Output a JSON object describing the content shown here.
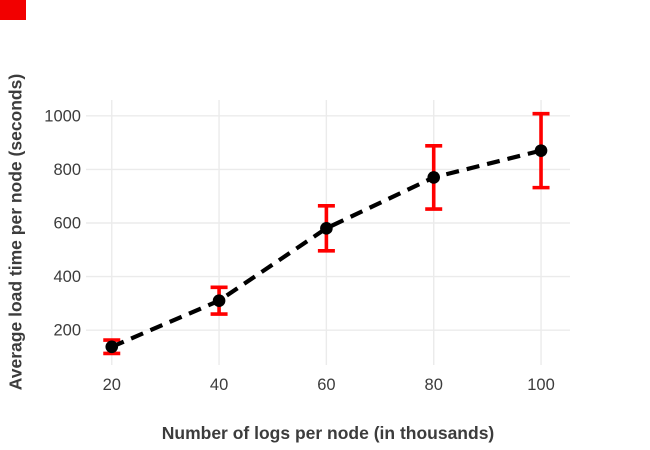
{
  "annotation": {
    "corner_marker_color": "#f20000"
  },
  "chart_data": {
    "type": "line",
    "title": "",
    "xlabel": "Number of logs per node (in thousands)",
    "ylabel": "Average load time per node (seconds)",
    "x": [
      20,
      40,
      60,
      80,
      100
    ],
    "y": [
      138,
      310,
      580,
      770,
      870
    ],
    "yerr": [
      25,
      50,
      84,
      118,
      138
    ],
    "xticks": [
      "20",
      "40",
      "60",
      "80",
      "100"
    ],
    "xtick_values": [
      20,
      40,
      60,
      80,
      100
    ],
    "yticks": [
      "200",
      "400",
      "600",
      "800",
      "1000"
    ],
    "ytick_values": [
      200,
      400,
      600,
      800,
      1000
    ],
    "xlim": [
      15.2,
      105.4
    ],
    "ylim": [
      70,
      1059
    ],
    "grid": true,
    "legend": false,
    "line_color": "#000000",
    "line_style": "dashed",
    "marker_color": "#000000",
    "error_color": "#ff0000",
    "grid_color": "#ebebeb",
    "tick_color": "#3c3c3c",
    "title_color": "#3c3c3c",
    "background": "#ffffff"
  }
}
